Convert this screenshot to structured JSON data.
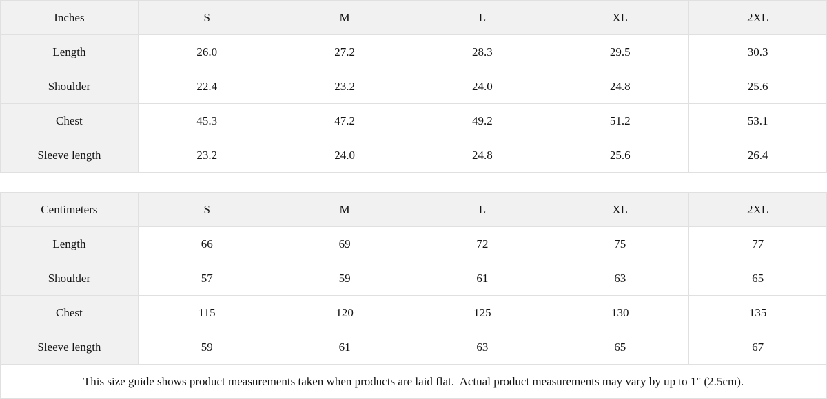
{
  "size_guide": {
    "sizes": [
      "S",
      "M",
      "L",
      "XL",
      "2XL"
    ],
    "inches": {
      "unit_label": "Inches",
      "rows": [
        {
          "label": "Length",
          "values": [
            "26.0",
            "27.2",
            "28.3",
            "29.5",
            "30.3"
          ]
        },
        {
          "label": "Shoulder",
          "values": [
            "22.4",
            "23.2",
            "24.0",
            "24.8",
            "25.6"
          ]
        },
        {
          "label": "Chest",
          "values": [
            "45.3",
            "47.2",
            "49.2",
            "51.2",
            "53.1"
          ]
        },
        {
          "label": "Sleeve length",
          "values": [
            "23.2",
            "24.0",
            "24.8",
            "25.6",
            "26.4"
          ]
        }
      ]
    },
    "centimeters": {
      "unit_label": "Centimeters",
      "rows": [
        {
          "label": "Length",
          "values": [
            "66",
            "69",
            "72",
            "75",
            "77"
          ]
        },
        {
          "label": "Shoulder",
          "values": [
            "57",
            "59",
            "61",
            "63",
            "65"
          ]
        },
        {
          "label": "Chest",
          "values": [
            "115",
            "120",
            "125",
            "130",
            "135"
          ]
        },
        {
          "label": "Sleeve length",
          "values": [
            "59",
            "61",
            "63",
            "65",
            "67"
          ]
        }
      ]
    },
    "footer_note": "This size guide shows product measurements taken when products are laid flat.  Actual product measurements may vary by up to 1\" (2.5cm)."
  },
  "colors": {
    "header_bg": "#f1f1f1",
    "border": "#e0e0e0",
    "text": "#131313"
  }
}
